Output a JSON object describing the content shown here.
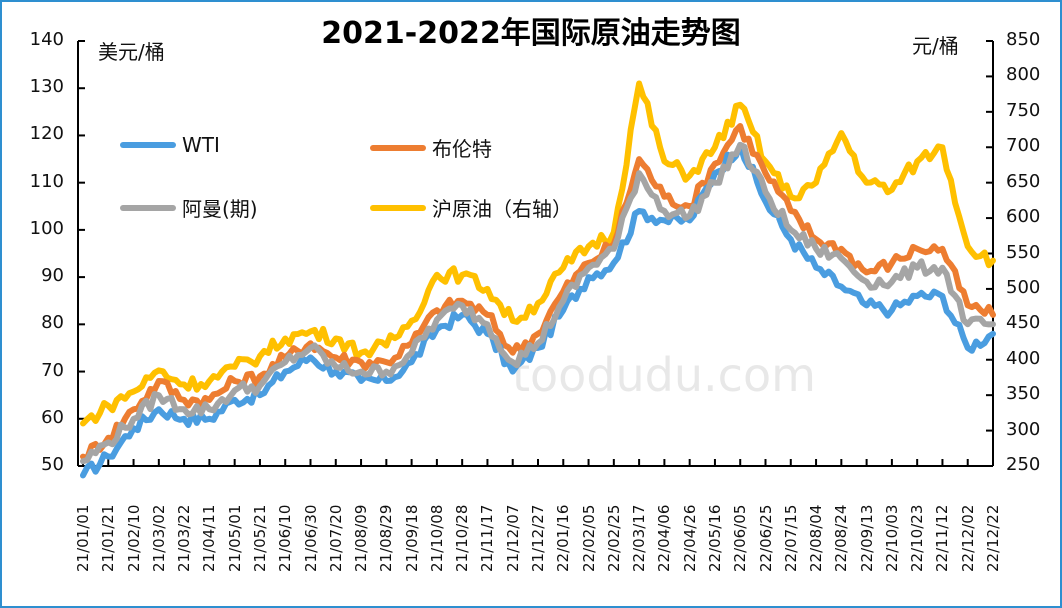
{
  "chart_data": {
    "type": "line",
    "title": "2021-2022年国际原油走势图",
    "ylabel_left": "美元/桶",
    "ylabel_right": "元/桶",
    "xlabel": "",
    "ylim_left": [
      50,
      140
    ],
    "ylim_right": [
      250,
      850
    ],
    "yticks_left": [
      50,
      60,
      70,
      80,
      90,
      100,
      110,
      120,
      130,
      140
    ],
    "yticks_right": [
      250,
      300,
      350,
      400,
      450,
      500,
      550,
      600,
      650,
      700,
      750,
      800,
      850
    ],
    "grid": false,
    "legend_position": "upper-left-inside",
    "categories": [
      "21/01/01",
      "21/01/21",
      "21/02/10",
      "21/03/02",
      "21/03/22",
      "21/04/11",
      "21/05/01",
      "21/05/21",
      "21/06/10",
      "21/06/30",
      "21/07/20",
      "21/08/09",
      "21/08/29",
      "21/09/18",
      "21/10/08",
      "21/10/28",
      "21/11/17",
      "21/12/07",
      "21/12/27",
      "22/01/16",
      "22/02/05",
      "22/02/25",
      "22/03/17",
      "22/04/06",
      "22/04/26",
      "22/05/16",
      "22/06/05",
      "22/06/25",
      "22/07/15",
      "22/08/04",
      "22/08/24",
      "22/09/13",
      "22/10/03",
      "22/10/23",
      "22/11/12",
      "22/12/02",
      "22/12/22"
    ],
    "series": [
      {
        "name": "WTI",
        "axis": "left",
        "color": "#4a9de0",
        "values": [
          48,
          52,
          58,
          62,
          60,
          60,
          64,
          65,
          70,
          73,
          70,
          68,
          68,
          72,
          79,
          82,
          78,
          70,
          75,
          83,
          90,
          93,
          104,
          102,
          102,
          112,
          118,
          106,
          98,
          92,
          88,
          84,
          83,
          86,
          86,
          75,
          78
        ]
      },
      {
        "name": "布伦特",
        "axis": "left",
        "color": "#ed7d31",
        "values": [
          52,
          56,
          62,
          68,
          64,
          64,
          68,
          69,
          73,
          76,
          73,
          72,
          72,
          76,
          83,
          85,
          82,
          74,
          78,
          87,
          93,
          97,
          115,
          107,
          105,
          114,
          122,
          112,
          104,
          98,
          96,
          91,
          93,
          96,
          96,
          84,
          82
        ]
      },
      {
        "name": "阿曼(期)",
        "axis": "left",
        "color": "#a5a5a5",
        "values": [
          51,
          55,
          60,
          65,
          62,
          62,
          66,
          67,
          72,
          75,
          71,
          70,
          70,
          74,
          81,
          84,
          80,
          72,
          76,
          85,
          92,
          96,
          112,
          104,
          103,
          110,
          118,
          108,
          100,
          96,
          94,
          89,
          89,
          92,
          92,
          80,
          80
        ]
      },
      {
        "name": "沪原油（右轴）",
        "axis": "right",
        "color": "#ffc000",
        "values": [
          310,
          335,
          355,
          385,
          365,
          370,
          390,
          405,
          430,
          440,
          430,
          410,
          420,
          455,
          520,
          520,
          500,
          455,
          480,
          530,
          560,
          580,
          790,
          680,
          660,
          700,
          760,
          680,
          630,
          650,
          720,
          650,
          640,
          680,
          700,
          560,
          540
        ]
      }
    ]
  },
  "header": {
    "title": "2021-2022年国际原油走势图"
  },
  "axes": {
    "left_unit": "美元/桶",
    "right_unit": "元/桶"
  },
  "legend": {
    "items": [
      {
        "label": "WTI",
        "color": "#4a9de0"
      },
      {
        "label": "布伦特",
        "color": "#ed7d31"
      },
      {
        "label": "阿曼(期)",
        "color": "#a5a5a5"
      },
      {
        "label": "沪原油（右轴）",
        "color": "#ffc000"
      }
    ]
  },
  "watermark": {
    "text": "toodudu.com"
  }
}
